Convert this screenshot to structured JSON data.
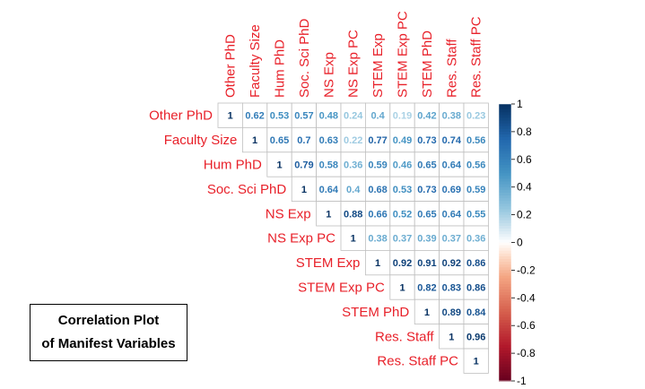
{
  "caption": {
    "line1": "Correlation Plot",
    "line2": "of Manifest Variables"
  },
  "colors": {
    "label": "#e8212a",
    "negative_end": "#67001f",
    "neutral": "#ffffff",
    "positive_end": "#053061",
    "grid": "#bfbfbf"
  },
  "chart_data": {
    "type": "heatmap",
    "layout": "upper-triangle",
    "variables": [
      "Other PhD",
      "Faculty Size",
      "Hum PhD",
      "Soc. Sci PhD",
      "NS Exp",
      "NS Exp PC",
      "STEM Exp",
      "STEM Exp PC",
      "STEM PhD",
      "Res. Staff",
      "Res. Staff PC"
    ],
    "matrix": [
      [
        1,
        0.62,
        0.53,
        0.57,
        0.48,
        0.24,
        0.4,
        0.19,
        0.42,
        0.38,
        0.23
      ],
      [
        null,
        1,
        0.65,
        0.7,
        0.63,
        0.22,
        0.77,
        0.49,
        0.73,
        0.74,
        0.56
      ],
      [
        null,
        null,
        1,
        0.79,
        0.58,
        0.36,
        0.59,
        0.46,
        0.65,
        0.64,
        0.56
      ],
      [
        null,
        null,
        null,
        1,
        0.64,
        0.4,
        0.68,
        0.53,
        0.73,
        0.69,
        0.59
      ],
      [
        null,
        null,
        null,
        null,
        1,
        0.88,
        0.66,
        0.52,
        0.65,
        0.64,
        0.55
      ],
      [
        null,
        null,
        null,
        null,
        null,
        1,
        0.38,
        0.37,
        0.39,
        0.37,
        0.36
      ],
      [
        null,
        null,
        null,
        null,
        null,
        null,
        1,
        0.92,
        0.91,
        0.92,
        0.86
      ],
      [
        null,
        null,
        null,
        null,
        null,
        null,
        null,
        1,
        0.82,
        0.83,
        0.86
      ],
      [
        null,
        null,
        null,
        null,
        null,
        null,
        null,
        null,
        1,
        0.89,
        0.84
      ],
      [
        null,
        null,
        null,
        null,
        null,
        null,
        null,
        null,
        null,
        1,
        0.96
      ],
      [
        null,
        null,
        null,
        null,
        null,
        null,
        null,
        null,
        null,
        null,
        1
      ]
    ],
    "value_range": [
      -1,
      1
    ],
    "colorbar_ticks": [
      "1",
      "0.8",
      "0.6",
      "0.4",
      "0.2",
      "0",
      "-0.2",
      "-0.4",
      "-0.6",
      "-0.8",
      "-1"
    ],
    "colorbar_tick_values": [
      1,
      0.8,
      0.6,
      0.4,
      0.2,
      0,
      -0.2,
      -0.4,
      -0.6,
      -0.8,
      -1
    ],
    "legend": "right"
  }
}
